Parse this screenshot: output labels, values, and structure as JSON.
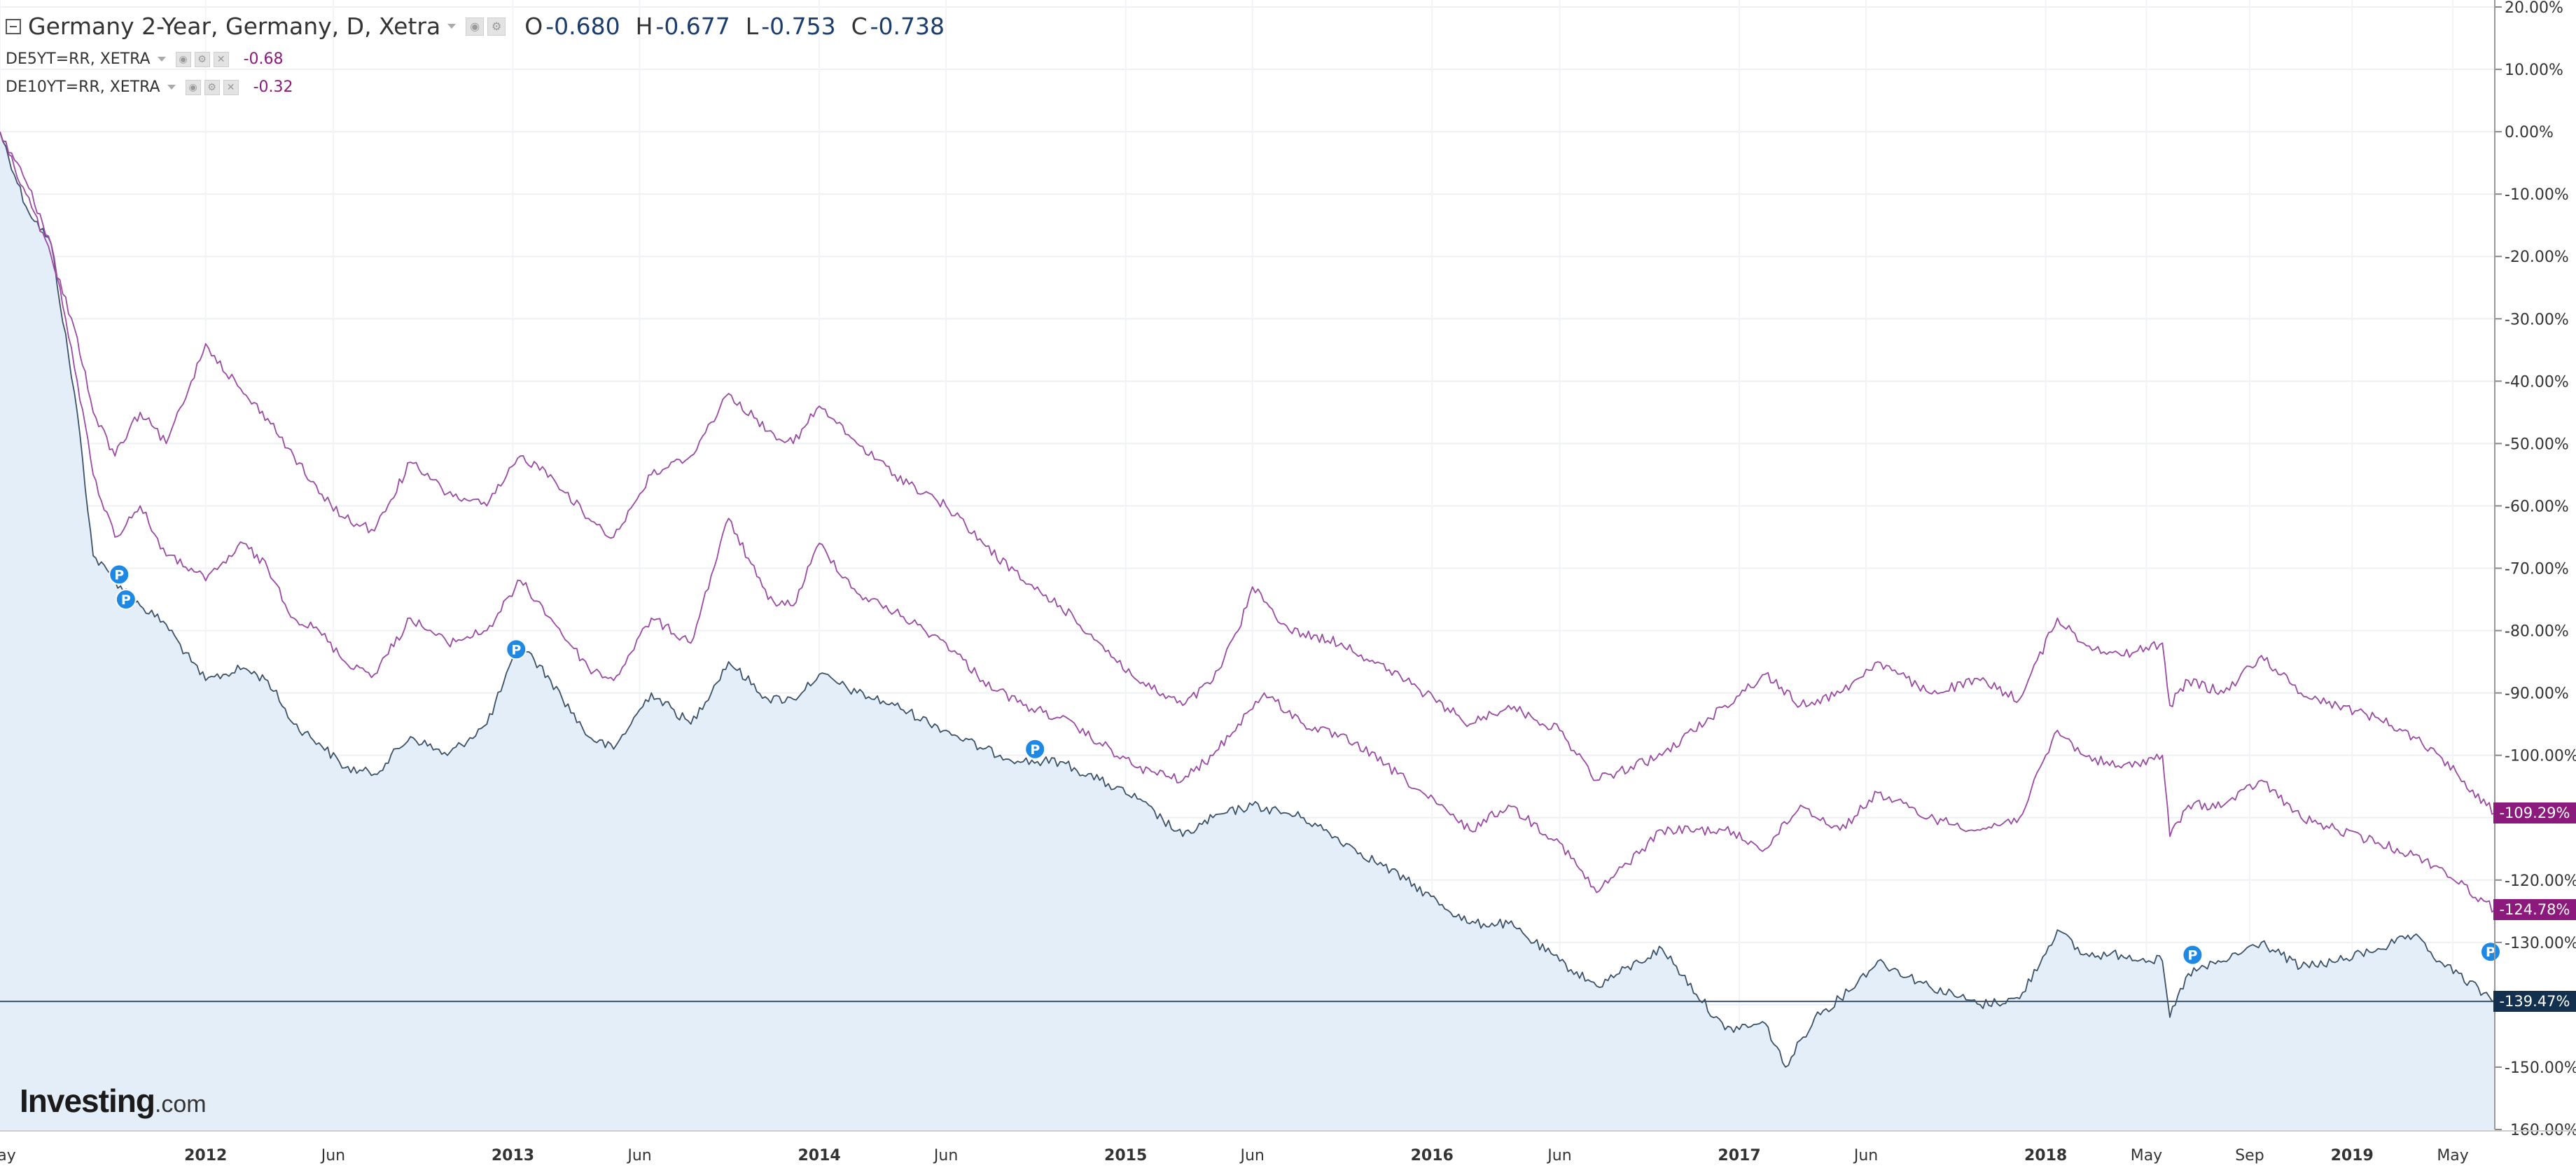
{
  "legend": {
    "main": {
      "title": "Germany 2-Year, Germany, D, Xetra",
      "open_label": "O",
      "open": "-0.680",
      "high_label": "H",
      "high": "-0.677",
      "low_label": "L",
      "low": "-0.753",
      "close_label": "C",
      "close": "-0.738"
    },
    "comparisons": [
      {
        "symbol": "DE5YT=RR, XETRA",
        "value": "-0.68"
      },
      {
        "symbol": "DE10YT=RR, XETRA",
        "value": "-0.32"
      }
    ]
  },
  "price_tags": [
    {
      "label": "-109.29%",
      "color": "#8b1a7c"
    },
    {
      "label": "-124.78%",
      "color": "#8b1a7c"
    },
    {
      "label": "-139.47%",
      "color": "#13304f"
    }
  ],
  "branding": {
    "name": "Investing",
    "suffix": ".com"
  },
  "colors": {
    "main_series": "#3a5168",
    "main_fill": "#e4eef9",
    "comparison_series": "#9b4aa3",
    "pin": "#1e88e5"
  },
  "chart_data": {
    "type": "line",
    "yaxis": {
      "ylim": [
        -160,
        20
      ],
      "unit": "%",
      "ticks": [
        "20.00%",
        "10.00%",
        "0.00%",
        "-10.00%",
        "-20.00%",
        "-30.00%",
        "-40.00%",
        "-50.00%",
        "-60.00%",
        "-70.00%",
        "-80.00%",
        "-90.00%",
        "-100.00%",
        "-110.00%",
        "-120.00%",
        "-130.00%",
        "-140.00%",
        "-150.00%",
        "-160.00%"
      ]
    },
    "xaxis": {
      "range": [
        "2011-05-01",
        "2019-06-20"
      ],
      "ticks": [
        {
          "label": "May",
          "date": "2011-05-01",
          "bold": false
        },
        {
          "label": "2012",
          "date": "2012-01-01",
          "bold": true
        },
        {
          "label": "Jun",
          "date": "2012-06-01",
          "bold": false
        },
        {
          "label": "2013",
          "date": "2013-01-01",
          "bold": true
        },
        {
          "label": "Jun",
          "date": "2013-06-01",
          "bold": false
        },
        {
          "label": "2014",
          "date": "2014-01-01",
          "bold": true
        },
        {
          "label": "Jun",
          "date": "2014-06-01",
          "bold": false
        },
        {
          "label": "2015",
          "date": "2015-01-01",
          "bold": true
        },
        {
          "label": "Jun",
          "date": "2015-06-01",
          "bold": false
        },
        {
          "label": "2016",
          "date": "2016-01-01",
          "bold": true
        },
        {
          "label": "Jun",
          "date": "2016-06-01",
          "bold": false
        },
        {
          "label": "2017",
          "date": "2017-01-01",
          "bold": true
        },
        {
          "label": "Jun",
          "date": "2017-06-01",
          "bold": false
        },
        {
          "label": "2018",
          "date": "2018-01-01",
          "bold": true
        },
        {
          "label": "May",
          "date": "2018-05-01",
          "bold": false
        },
        {
          "label": "Sep",
          "date": "2018-09-01",
          "bold": false
        },
        {
          "label": "2019",
          "date": "2019-01-01",
          "bold": true
        },
        {
          "label": "May",
          "date": "2019-05-01",
          "bold": false
        }
      ]
    },
    "grid": true,
    "legend": "top-left",
    "series": [
      {
        "name": "Germany 2-Year, Germany, D, Xetra",
        "color": "#3a5168",
        "fill": true,
        "points": [
          [
            "2011-05-01",
            0
          ],
          [
            "2011-06-01",
            -12
          ],
          [
            "2011-07-01",
            -18
          ],
          [
            "2011-08-01",
            -45
          ],
          [
            "2011-08-20",
            -68
          ],
          [
            "2011-09-15",
            -72
          ],
          [
            "2011-10-15",
            -76
          ],
          [
            "2011-11-15",
            -79
          ],
          [
            "2011-12-15",
            -85
          ],
          [
            "2012-01-01",
            -88
          ],
          [
            "2012-02-15",
            -86
          ],
          [
            "2012-03-15",
            -88
          ],
          [
            "2012-04-15",
            -95
          ],
          [
            "2012-05-15",
            -98
          ],
          [
            "2012-06-15",
            -102
          ],
          [
            "2012-07-20",
            -103
          ],
          [
            "2012-09-01",
            -97
          ],
          [
            "2012-10-15",
            -100
          ],
          [
            "2012-12-01",
            -95
          ],
          [
            "2013-01-10",
            -82
          ],
          [
            "2013-02-15",
            -88
          ],
          [
            "2013-04-01",
            -97
          ],
          [
            "2013-05-01",
            -99
          ],
          [
            "2013-06-15",
            -90
          ],
          [
            "2013-08-01",
            -95
          ],
          [
            "2013-09-15",
            -85
          ],
          [
            "2013-11-01",
            -91
          ],
          [
            "2013-12-01",
            -91
          ],
          [
            "2014-01-01",
            -87
          ],
          [
            "2014-02-15",
            -90
          ],
          [
            "2014-04-01",
            -92
          ],
          [
            "2014-06-01",
            -96
          ],
          [
            "2014-07-15",
            -99
          ],
          [
            "2014-09-01",
            -101
          ],
          [
            "2014-10-15",
            -101
          ],
          [
            "2014-12-01",
            -104
          ],
          [
            "2015-01-15",
            -107
          ],
          [
            "2015-03-10",
            -113
          ],
          [
            "2015-04-15",
            -110
          ],
          [
            "2015-06-01",
            -108
          ],
          [
            "2015-08-01",
            -110
          ],
          [
            "2015-10-01",
            -115
          ],
          [
            "2015-12-01",
            -120
          ],
          [
            "2016-02-15",
            -127
          ],
          [
            "2016-04-01",
            -127
          ],
          [
            "2016-06-01",
            -133
          ],
          [
            "2016-07-15",
            -137
          ],
          [
            "2016-10-01",
            -131
          ],
          [
            "2016-12-15",
            -144
          ],
          [
            "2017-02-01",
            -143
          ],
          [
            "2017-02-25",
            -150
          ],
          [
            "2017-04-01",
            -142
          ],
          [
            "2017-05-01",
            -139
          ],
          [
            "2017-06-15",
            -133
          ],
          [
            "2017-08-15",
            -137
          ],
          [
            "2017-10-15",
            -140
          ],
          [
            "2017-12-01",
            -139
          ],
          [
            "2018-01-15",
            -128
          ],
          [
            "2018-02-15",
            -132
          ],
          [
            "2018-04-01",
            -132
          ],
          [
            "2018-05-20",
            -133
          ],
          [
            "2018-05-29",
            -142
          ],
          [
            "2018-06-20",
            -135
          ],
          [
            "2018-08-01",
            -133
          ],
          [
            "2018-09-15",
            -130
          ],
          [
            "2018-11-01",
            -134
          ],
          [
            "2018-12-15",
            -133
          ],
          [
            "2019-02-01",
            -131
          ],
          [
            "2019-03-15",
            -129
          ],
          [
            "2019-04-15",
            -133
          ],
          [
            "2019-06-20",
            -139.47
          ]
        ]
      },
      {
        "name": "DE5YT=RR, XETRA",
        "color": "#9b4aa3",
        "fill": false,
        "points": [
          [
            "2011-05-01",
            0
          ],
          [
            "2011-06-01",
            -8
          ],
          [
            "2011-07-01",
            -18
          ],
          [
            "2011-08-01",
            -40
          ],
          [
            "2011-08-20",
            -55
          ],
          [
            "2011-09-15",
            -65
          ],
          [
            "2011-10-15",
            -60
          ],
          [
            "2011-11-15",
            -68
          ],
          [
            "2011-12-15",
            -70
          ],
          [
            "2012-01-01",
            -72
          ],
          [
            "2012-02-15",
            -66
          ],
          [
            "2012-03-15",
            -70
          ],
          [
            "2012-04-15",
            -78
          ],
          [
            "2012-05-15",
            -80
          ],
          [
            "2012-06-15",
            -85
          ],
          [
            "2012-07-20",
            -87
          ],
          [
            "2012-09-01",
            -78
          ],
          [
            "2012-10-15",
            -82
          ],
          [
            "2012-12-01",
            -80
          ],
          [
            "2013-01-10",
            -72
          ],
          [
            "2013-02-15",
            -78
          ],
          [
            "2013-04-01",
            -86
          ],
          [
            "2013-05-01",
            -88
          ],
          [
            "2013-06-15",
            -78
          ],
          [
            "2013-08-01",
            -82
          ],
          [
            "2013-09-15",
            -62
          ],
          [
            "2013-11-01",
            -75
          ],
          [
            "2013-12-01",
            -76
          ],
          [
            "2014-01-01",
            -66
          ],
          [
            "2014-02-15",
            -74
          ],
          [
            "2014-04-01",
            -77
          ],
          [
            "2014-06-01",
            -82
          ],
          [
            "2014-07-15",
            -88
          ],
          [
            "2014-09-01",
            -92
          ],
          [
            "2014-10-15",
            -94
          ],
          [
            "2014-12-01",
            -98
          ],
          [
            "2015-01-15",
            -102
          ],
          [
            "2015-03-10",
            -104
          ],
          [
            "2015-04-15",
            -100
          ],
          [
            "2015-05-15",
            -95
          ],
          [
            "2015-06-15",
            -90
          ],
          [
            "2015-08-01",
            -95
          ],
          [
            "2015-10-01",
            -98
          ],
          [
            "2015-12-01",
            -104
          ],
          [
            "2016-02-15",
            -112
          ],
          [
            "2016-04-01",
            -108
          ],
          [
            "2016-06-01",
            -114
          ],
          [
            "2016-07-15",
            -122
          ],
          [
            "2016-10-01",
            -112
          ],
          [
            "2016-12-15",
            -112
          ],
          [
            "2017-02-01",
            -115
          ],
          [
            "2017-03-15",
            -108
          ],
          [
            "2017-05-01",
            -112
          ],
          [
            "2017-06-15",
            -106
          ],
          [
            "2017-08-15",
            -110
          ],
          [
            "2017-10-15",
            -112
          ],
          [
            "2017-12-01",
            -110
          ],
          [
            "2018-01-15",
            -96
          ],
          [
            "2018-02-15",
            -100
          ],
          [
            "2018-04-01",
            -102
          ],
          [
            "2018-05-20",
            -100
          ],
          [
            "2018-05-29",
            -113
          ],
          [
            "2018-06-20",
            -108
          ],
          [
            "2018-08-01",
            -108
          ],
          [
            "2018-09-15",
            -104
          ],
          [
            "2018-11-01",
            -110
          ],
          [
            "2018-12-15",
            -112
          ],
          [
            "2019-02-01",
            -114
          ],
          [
            "2019-03-15",
            -116
          ],
          [
            "2019-04-15",
            -118
          ],
          [
            "2019-06-20",
            -124.78
          ]
        ]
      },
      {
        "name": "DE10YT=RR, XETRA",
        "color": "#9b4aa3",
        "fill": false,
        "points": [
          [
            "2011-05-01",
            0
          ],
          [
            "2011-06-01",
            -10
          ],
          [
            "2011-07-01",
            -20
          ],
          [
            "2011-08-01",
            -33
          ],
          [
            "2011-08-20",
            -45
          ],
          [
            "2011-09-15",
            -52
          ],
          [
            "2011-10-15",
            -45
          ],
          [
            "2011-11-15",
            -50
          ],
          [
            "2011-12-15",
            -40
          ],
          [
            "2012-01-01",
            -34
          ],
          [
            "2012-02-15",
            -42
          ],
          [
            "2012-03-15",
            -46
          ],
          [
            "2012-04-15",
            -52
          ],
          [
            "2012-05-15",
            -58
          ],
          [
            "2012-06-15",
            -62
          ],
          [
            "2012-07-20",
            -64
          ],
          [
            "2012-09-01",
            -53
          ],
          [
            "2012-10-15",
            -58
          ],
          [
            "2012-12-01",
            -60
          ],
          [
            "2013-01-10",
            -52
          ],
          [
            "2013-02-15",
            -55
          ],
          [
            "2013-04-01",
            -62
          ],
          [
            "2013-05-01",
            -65
          ],
          [
            "2013-06-15",
            -55
          ],
          [
            "2013-08-01",
            -52
          ],
          [
            "2013-09-15",
            -42
          ],
          [
            "2013-11-01",
            -48
          ],
          [
            "2013-12-01",
            -50
          ],
          [
            "2014-01-01",
            -44
          ],
          [
            "2014-02-15",
            -50
          ],
          [
            "2014-04-01",
            -55
          ],
          [
            "2014-06-01",
            -60
          ],
          [
            "2014-07-15",
            -66
          ],
          [
            "2014-09-01",
            -72
          ],
          [
            "2014-10-15",
            -76
          ],
          [
            "2014-12-01",
            -82
          ],
          [
            "2015-01-15",
            -88
          ],
          [
            "2015-03-10",
            -92
          ],
          [
            "2015-04-15",
            -88
          ],
          [
            "2015-05-15",
            -80
          ],
          [
            "2015-06-01",
            -73
          ],
          [
            "2015-07-15",
            -80
          ],
          [
            "2015-09-15",
            -82
          ],
          [
            "2015-12-01",
            -88
          ],
          [
            "2016-02-15",
            -95
          ],
          [
            "2016-04-01",
            -92
          ],
          [
            "2016-06-01",
            -96
          ],
          [
            "2016-07-15",
            -104
          ],
          [
            "2016-10-01",
            -100
          ],
          [
            "2016-12-15",
            -92
          ],
          [
            "2017-02-01",
            -87
          ],
          [
            "2017-03-15",
            -92
          ],
          [
            "2017-05-01",
            -90
          ],
          [
            "2017-06-15",
            -85
          ],
          [
            "2017-08-15",
            -90
          ],
          [
            "2017-10-15",
            -88
          ],
          [
            "2017-12-01",
            -91
          ],
          [
            "2018-01-15",
            -78
          ],
          [
            "2018-02-15",
            -82
          ],
          [
            "2018-04-01",
            -84
          ],
          [
            "2018-05-20",
            -82
          ],
          [
            "2018-05-29",
            -92
          ],
          [
            "2018-06-20",
            -88
          ],
          [
            "2018-08-01",
            -90
          ],
          [
            "2018-09-15",
            -84
          ],
          [
            "2018-11-01",
            -90
          ],
          [
            "2018-12-15",
            -92
          ],
          [
            "2019-02-01",
            -94
          ],
          [
            "2019-03-15",
            -97
          ],
          [
            "2019-04-15",
            -100
          ],
          [
            "2019-06-20",
            -109.29
          ]
        ]
      }
    ],
    "reference_line": {
      "value": -139.47
    },
    "markers": [
      {
        "label": "P",
        "date": "2011-09-20",
        "value": -71
      },
      {
        "label": "P",
        "date": "2011-09-28",
        "value": -75
      },
      {
        "label": "P",
        "date": "2013-01-05",
        "value": -83
      },
      {
        "label": "P",
        "date": "2014-09-15",
        "value": -99
      },
      {
        "label": "P",
        "date": "2018-06-25",
        "value": -132
      },
      {
        "label": "P",
        "date": "2019-06-15",
        "value": -131.5
      }
    ]
  }
}
